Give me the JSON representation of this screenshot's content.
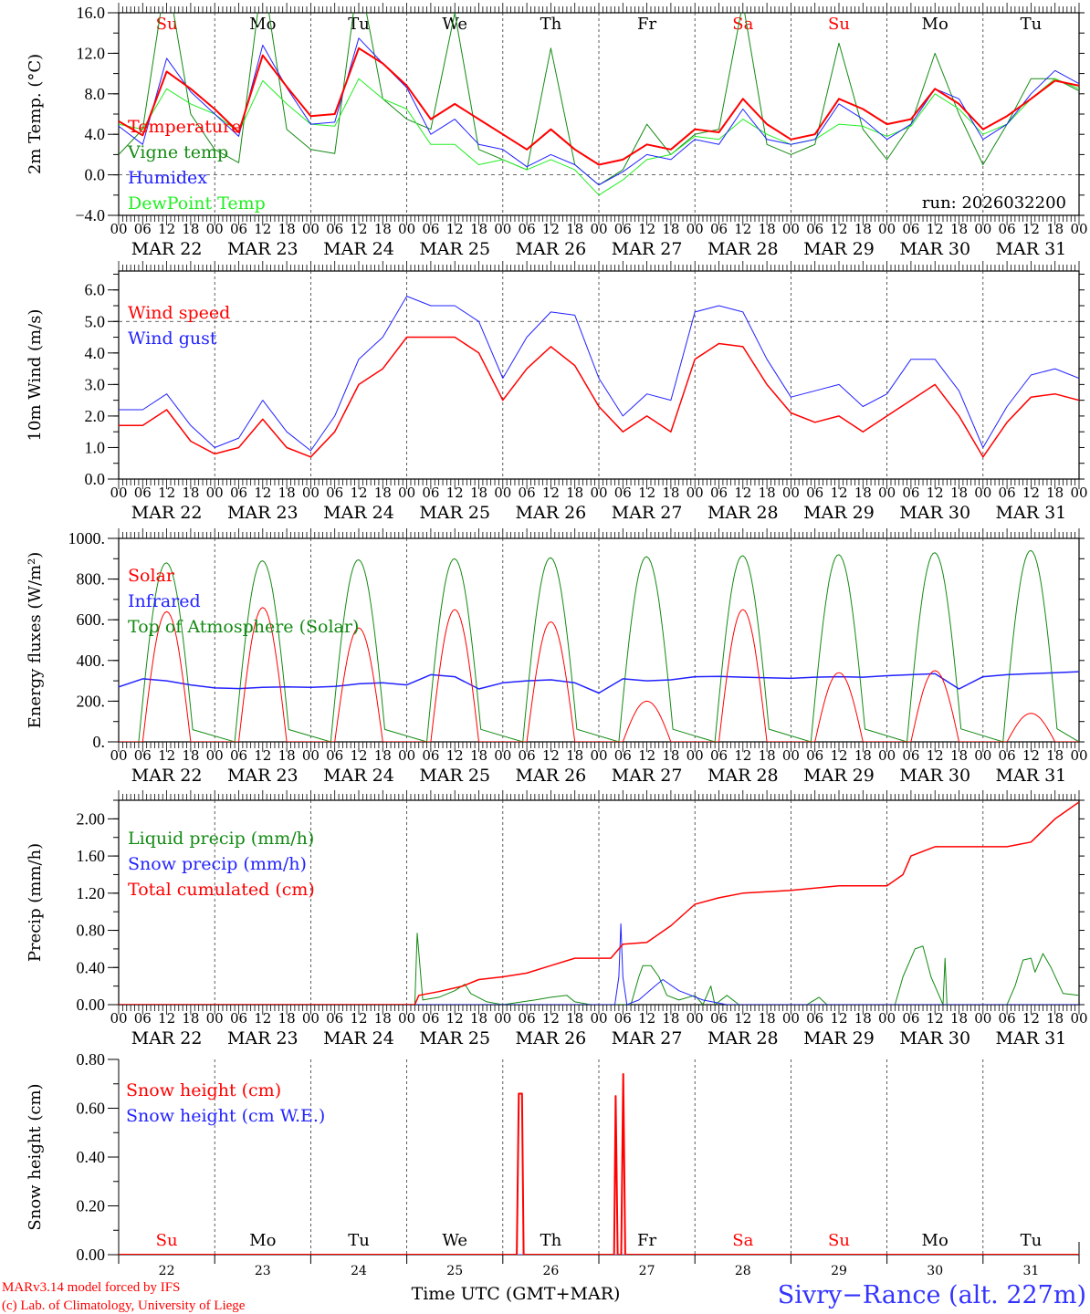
{
  "x_axis": {
    "start": "2026-03-22 00 UTC",
    "hours_total": 240,
    "hour_labels": [
      "00",
      "06",
      "12",
      "18"
    ],
    "final_hour_label": "00",
    "date_labels": [
      "MAR 22",
      "MAR 23",
      "MAR 24",
      "MAR 25",
      "MAR 26",
      "MAR 27",
      "MAR 28",
      "MAR 29",
      "MAR 30",
      "MAR 31"
    ]
  },
  "day_names": [
    {
      "label": "Su",
      "color": "#ff0000"
    },
    {
      "label": "Mo",
      "color": "#000000"
    },
    {
      "label": "Tu",
      "color": "#000000"
    },
    {
      "label": "We",
      "color": "#000000"
    },
    {
      "label": "Th",
      "color": "#000000"
    },
    {
      "label": "Fr",
      "color": "#000000"
    },
    {
      "label": "Sa",
      "color": "#ff0000"
    },
    {
      "label": "Su",
      "color": "#ff0000"
    },
    {
      "label": "Mo",
      "color": "#000000"
    },
    {
      "label": "Tu",
      "color": "#000000"
    }
  ],
  "day_numbers": [
    "22",
    "23",
    "24",
    "25",
    "26",
    "27",
    "28",
    "29",
    "30",
    "31"
  ],
  "footer": {
    "model": "MARv3.14 model forced by IFS",
    "credit": "(c) Lab. of Climatology, University of Liege",
    "xlabel": "Time UTC (GMT+MAR)",
    "station": "Sivry−Rance (alt. 227m)"
  },
  "chart_data": [
    {
      "type": "line",
      "ylabel": "2m Temp. (°C)",
      "ylim": [
        -4,
        16
      ],
      "minor_step": 2,
      "dashed_y": 0,
      "yticks": [
        {
          "v": 16,
          "label": "16.0"
        },
        {
          "v": 12,
          "label": "12.0"
        },
        {
          "v": 8,
          "label": "8.0"
        },
        {
          "v": 4,
          "label": "4.0"
        },
        {
          "v": 0,
          "label": "0.0"
        },
        {
          "v": -4,
          "label": "−4.0"
        }
      ],
      "annotation": "run: 2026032200",
      "series": [
        {
          "name": "Vigne temp",
          "color": "#138a13",
          "step_hours": 6,
          "values": [
            2.0,
            4.5,
            20,
            6,
            2.5,
            1.2,
            20,
            4.5,
            2.5,
            2.1,
            20,
            7.5,
            5.5,
            4.5,
            16,
            2.5,
            1.5,
            0.5,
            12.5,
            1.0,
            -1.0,
            0.5,
            5,
            2.0,
            4,
            4.5,
            17,
            3,
            2.0,
            3.0,
            13,
            4.5,
            1.5,
            5,
            12,
            6,
            1,
            5,
            9.5,
            9.5,
            8.3
          ]
        },
        {
          "name": "DewPoint Temp",
          "color": "#22ee22",
          "step_hours": 6,
          "values": [
            5,
            4.5,
            8.5,
            7.0,
            6.0,
            4.2,
            9.3,
            7.0,
            5.0,
            4.8,
            9.5,
            7.5,
            6.5,
            3.0,
            3.0,
            1.0,
            1.5,
            0.5,
            1.5,
            0.5,
            -2.0,
            -0.5,
            1.5,
            2.0,
            3.8,
            3.5,
            5.5,
            4.0,
            3.0,
            3.5,
            5.0,
            4.8,
            3.8,
            4.8,
            8,
            6.5,
            4.0,
            5.0,
            7.5,
            9.5,
            8.5
          ]
        },
        {
          "name": "Humidex",
          "color": "#2222ff",
          "step_hours": 6,
          "values": [
            4.8,
            3.0,
            11.5,
            8.2,
            6.0,
            3.8,
            12.8,
            8.6,
            5.0,
            5.2,
            13.5,
            11,
            8.6,
            4.0,
            5.5,
            3.0,
            2.5,
            0.8,
            2.0,
            1.0,
            -1.0,
            0.3,
            2.0,
            1.5,
            3.5,
            3.0,
            6.5,
            3.5,
            3.0,
            3.5,
            7,
            5.5,
            3.5,
            5.0,
            8.5,
            7.5,
            3.5,
            5,
            8,
            10.3,
            9
          ]
        },
        {
          "name": "Temperature",
          "color": "#ff0000",
          "width": 2,
          "step_hours": 6,
          "values": [
            5.3,
            3.9,
            10.2,
            8.5,
            6.5,
            4.2,
            11.8,
            8.7,
            5.8,
            6.0,
            12.5,
            11,
            8.8,
            5.5,
            7.0,
            5.5,
            4.0,
            2.5,
            4.5,
            2.5,
            1.0,
            1.5,
            3.0,
            2.5,
            4.5,
            4.2,
            7.5,
            5.0,
            3.5,
            4.0,
            7.5,
            6.5,
            5.0,
            5.5,
            8.5,
            7.0,
            4.5,
            5.8,
            7.5,
            9.3,
            8.8
          ]
        }
      ],
      "legend": [
        "Temperature",
        "Vigne temp",
        "Humidex",
        "DewPoint Temp"
      ],
      "legend_colors": [
        "#ff0000",
        "#138a13",
        "#2222ff",
        "#22ee22"
      ]
    },
    {
      "type": "line",
      "ylabel": "10m Wind (m/s)",
      "ylim": [
        0,
        6.6
      ],
      "minor_step": 0.5,
      "dashed_y": 5,
      "yticks": [
        {
          "v": 6,
          "label": "6.0"
        },
        {
          "v": 5,
          "label": "5.0"
        },
        {
          "v": 4,
          "label": "4.0"
        },
        {
          "v": 3,
          "label": "3.0"
        },
        {
          "v": 2,
          "label": "2.0"
        },
        {
          "v": 1,
          "label": "1.0"
        },
        {
          "v": 0,
          "label": "0.0"
        }
      ],
      "series": [
        {
          "name": "Wind gust",
          "color": "#2222ff",
          "step_hours": 6,
          "values": [
            2.2,
            2.2,
            2.7,
            1.7,
            1.0,
            1.3,
            2.5,
            1.5,
            0.9,
            2.0,
            3.8,
            4.5,
            5.8,
            5.5,
            5.5,
            5.0,
            3.2,
            4.5,
            5.3,
            5.2,
            3.2,
            2.0,
            2.7,
            2.5,
            5.3,
            5.5,
            5.3,
            3.8,
            2.6,
            2.8,
            3.0,
            2.3,
            2.7,
            3.8,
            3.8,
            2.8,
            1.0,
            2.3,
            3.3,
            3.5,
            3.2
          ]
        },
        {
          "name": "Wind speed",
          "color": "#ff0000",
          "width": 1.5,
          "step_hours": 6,
          "values": [
            1.7,
            1.7,
            2.2,
            1.2,
            0.8,
            1.0,
            1.9,
            1.0,
            0.7,
            1.5,
            3.0,
            3.5,
            4.5,
            4.5,
            4.5,
            4.0,
            2.5,
            3.5,
            4.2,
            3.6,
            2.3,
            1.5,
            2.0,
            1.5,
            3.8,
            4.3,
            4.2,
            3.0,
            2.1,
            1.8,
            2.0,
            1.5,
            2.0,
            2.5,
            3.0,
            2.0,
            0.7,
            1.8,
            2.6,
            2.7,
            2.5
          ]
        }
      ],
      "legend": [
        "Wind speed",
        "Wind gust"
      ],
      "legend_colors": [
        "#ff0000",
        "#2222ff"
      ]
    },
    {
      "type": "line",
      "ylabel": "Energy fluxes (W/m²)",
      "ylim": [
        0,
        1000
      ],
      "minor_step": 100,
      "yticks": [
        {
          "v": 1000,
          "label": "1000."
        },
        {
          "v": 800,
          "label": "800."
        },
        {
          "v": 600,
          "label": "600."
        },
        {
          "v": 400,
          "label": "400."
        },
        {
          "v": 200,
          "label": "200."
        },
        {
          "v": 0,
          "label": "0."
        }
      ],
      "series": [
        {
          "name": "Top of Atmosphere (Solar)",
          "color": "#138a13",
          "diurnal": {
            "rise_hour": 5.0,
            "set_hour": 18.8,
            "peaks": [
              880,
              890,
              895,
              900,
              905,
              910,
              915,
              920,
              930,
              940
            ]
          }
        },
        {
          "name": "Infrared",
          "color": "#2222ff",
          "width": 1.5,
          "step_hours": 6,
          "values": [
            270,
            310,
            300,
            280,
            265,
            262,
            268,
            270,
            268,
            272,
            285,
            290,
            280,
            330,
            320,
            260,
            290,
            300,
            305,
            290,
            240,
            310,
            300,
            305,
            320,
            322,
            318,
            315,
            312,
            318,
            320,
            318,
            325,
            330,
            335,
            260,
            320,
            330,
            335,
            340,
            345
          ]
        },
        {
          "name": "Solar",
          "color": "#ff0000",
          "diurnal": {
            "rise_hour": 6.0,
            "set_hour": 18.0,
            "peaks": [
              640,
              660,
              560,
              650,
              590,
              200,
              650,
              340,
              350,
              140
            ]
          }
        }
      ],
      "legend": [
        "Solar",
        "Infrared",
        "Top of Atmosphere (Solar)"
      ],
      "legend_colors": [
        "#ff0000",
        "#2222ff",
        "#138a13"
      ]
    },
    {
      "type": "line",
      "ylabel": "Precip (mm/h)",
      "ylim": [
        0,
        2.2
      ],
      "minor_step": 0.2,
      "yticks": [
        {
          "v": 2,
          "label": "2.00"
        },
        {
          "v": 1.6,
          "label": "1.60"
        },
        {
          "v": 1.2,
          "label": "1.20"
        },
        {
          "v": 0.8,
          "label": "0.80"
        },
        {
          "v": 0.4,
          "label": "0.40"
        },
        {
          "v": 0,
          "label": "0.00"
        }
      ],
      "series": [
        {
          "name": "Liquid precip (mm/h)",
          "color": "#138a13",
          "points": [
            [
              0,
              0
            ],
            [
              74,
              0
            ],
            [
              74.6,
              0.77
            ],
            [
              76,
              0.05
            ],
            [
              80,
              0.08
            ],
            [
              84,
              0.15
            ],
            [
              86.5,
              0.22
            ],
            [
              88,
              0.12
            ],
            [
              92,
              0.03
            ],
            [
              96,
              0
            ],
            [
              104,
              0.05
            ],
            [
              108,
              0.08
            ],
            [
              112,
              0.1
            ],
            [
              114,
              0.03
            ],
            [
              118,
              0
            ],
            [
              128,
              0
            ],
            [
              130,
              0.3
            ],
            [
              131,
              0.42
            ],
            [
              133,
              0.42
            ],
            [
              135,
              0.3
            ],
            [
              137,
              0.1
            ],
            [
              140,
              0.05
            ],
            [
              144,
              0.1
            ],
            [
              146,
              0
            ],
            [
              148,
              0.2
            ],
            [
              149,
              0
            ],
            [
              152,
              0.1
            ],
            [
              155,
              0
            ],
            [
              172,
              0
            ],
            [
              175,
              0.08
            ],
            [
              177,
              0
            ],
            [
              194,
              0
            ],
            [
              196,
              0.3
            ],
            [
              199,
              0.6
            ],
            [
              201,
              0.63
            ],
            [
              203,
              0.3
            ],
            [
              205,
              0.1
            ],
            [
              206,
              0
            ],
            [
              206.5,
              0.5
            ],
            [
              207,
              0
            ],
            [
              222,
              0
            ],
            [
              224,
              0.2
            ],
            [
              226,
              0.48
            ],
            [
              228,
              0.5
            ],
            [
              229,
              0.35
            ],
            [
              231,
              0.55
            ],
            [
              233,
              0.4
            ],
            [
              236,
              0.12
            ],
            [
              240,
              0.1
            ]
          ]
        },
        {
          "name": "Snow precip (mm/h)",
          "color": "#2222ff",
          "points": [
            [
              0,
              0
            ],
            [
              124,
              0
            ],
            [
              125,
              0.3
            ],
            [
              125.5,
              0.87
            ],
            [
              126,
              0.3
            ],
            [
              127,
              0
            ],
            [
              130,
              0.05
            ],
            [
              134,
              0.2
            ],
            [
              136,
              0.27
            ],
            [
              140,
              0.15
            ],
            [
              146,
              0.05
            ],
            [
              152,
              0
            ],
            [
              240,
              0
            ]
          ]
        },
        {
          "name": "Total cumulated (cm)",
          "color": "#ff0000",
          "width": 1.5,
          "points": [
            [
              0,
              0
            ],
            [
              74,
              0
            ],
            [
              75,
              0.1
            ],
            [
              80,
              0.14
            ],
            [
              86,
              0.2
            ],
            [
              90,
              0.27
            ],
            [
              96,
              0.3
            ],
            [
              102,
              0.34
            ],
            [
              108,
              0.42
            ],
            [
              114,
              0.5
            ],
            [
              123,
              0.5
            ],
            [
              126,
              0.65
            ],
            [
              132,
              0.67
            ],
            [
              138,
              0.85
            ],
            [
              144,
              1.08
            ],
            [
              150,
              1.15
            ],
            [
              156,
              1.2
            ],
            [
              168,
              1.23
            ],
            [
              180,
              1.28
            ],
            [
              192,
              1.28
            ],
            [
              196,
              1.4
            ],
            [
              198,
              1.6
            ],
            [
              204,
              1.7
            ],
            [
              222,
              1.7
            ],
            [
              228,
              1.75
            ],
            [
              234,
              2.0
            ],
            [
              240,
              2.18
            ]
          ]
        }
      ],
      "legend": [
        "Liquid precip (mm/h)",
        "Snow precip (mm/h)",
        "Total cumulated (cm)"
      ],
      "legend_colors": [
        "#138a13",
        "#2222ff",
        "#ff0000"
      ]
    },
    {
      "type": "line",
      "ylabel": "Snow height (cm)",
      "ylim": [
        0,
        0.8
      ],
      "minor_step": 0.1,
      "yticks": [
        {
          "v": 0.8,
          "label": "0.80"
        },
        {
          "v": 0.6,
          "label": "0.60"
        },
        {
          "v": 0.4,
          "label": "0.40"
        },
        {
          "v": 0.2,
          "label": "0.20"
        },
        {
          "v": 0,
          "label": "0.00"
        }
      ],
      "series": [
        {
          "name": "Snow height (cm W.E.)",
          "color": "#2222ff",
          "points": [
            [
              0,
              0
            ],
            [
              240,
              0
            ]
          ]
        },
        {
          "name": "Snow height (cm)",
          "color": "#ff0000",
          "width": 2,
          "points": [
            [
              0,
              0
            ],
            [
              99.5,
              0
            ],
            [
              100,
              0.66
            ],
            [
              100.8,
              0.66
            ],
            [
              101.2,
              0
            ],
            [
              123.8,
              0
            ],
            [
              124.2,
              0.65
            ],
            [
              124.7,
              0
            ],
            [
              125.6,
              0
            ],
            [
              126.1,
              0.74
            ],
            [
              126.6,
              0
            ],
            [
              240,
              0
            ]
          ]
        }
      ],
      "legend": [
        "Snow height (cm)",
        "Snow height (cm W.E.)"
      ],
      "legend_colors": [
        "#ff0000",
        "#2222ff"
      ]
    }
  ]
}
